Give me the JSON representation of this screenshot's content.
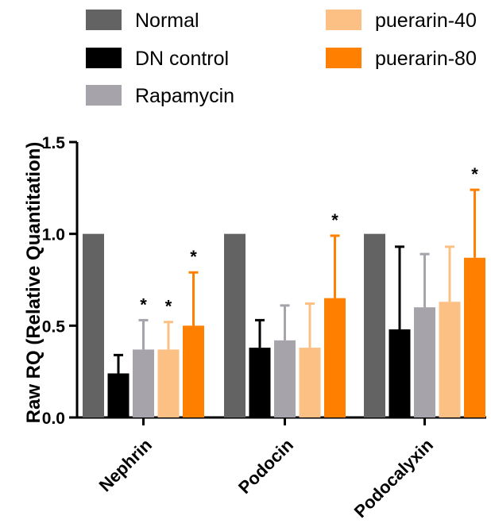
{
  "chart_data": {
    "type": "bar",
    "title": "",
    "xlabel": "",
    "ylabel": "Raw RQ (Relative Quantitation)",
    "ylim": [
      0,
      1.5
    ],
    "yticks": [
      "0.0",
      "0.5",
      "1.0",
      "1.5"
    ],
    "ytick_values": [
      0,
      0.5,
      1.0,
      1.5
    ],
    "categories": [
      "Nephrin",
      "Podocin",
      "Podocalyxin"
    ],
    "legend_position": "top",
    "series": [
      {
        "name": "Normal",
        "color": "#636363",
        "values": [
          1.0,
          1.0,
          1.0
        ],
        "errors": [
          0,
          0,
          0
        ],
        "significance": [
          "",
          "",
          ""
        ]
      },
      {
        "name": "DN control",
        "color": "#000000",
        "values": [
          0.24,
          0.38,
          0.48
        ],
        "errors": [
          0.1,
          0.15,
          0.45
        ],
        "significance": [
          "",
          "",
          ""
        ]
      },
      {
        "name": "Rapamycin",
        "color": "#a6a3ab",
        "values": [
          0.37,
          0.42,
          0.6
        ],
        "errors": [
          0.16,
          0.19,
          0.29
        ],
        "significance": [
          "*",
          "",
          ""
        ]
      },
      {
        "name": "puerarin-40",
        "color": "#fdc084",
        "values": [
          0.37,
          0.38,
          0.63
        ],
        "errors": [
          0.15,
          0.24,
          0.3
        ],
        "significance": [
          "*",
          "",
          ""
        ]
      },
      {
        "name": "puerarin-80",
        "color": "#ff8000",
        "values": [
          0.5,
          0.65,
          0.87
        ],
        "errors": [
          0.29,
          0.34,
          0.37
        ],
        "significance": [
          "*",
          "*",
          "*"
        ]
      }
    ]
  }
}
